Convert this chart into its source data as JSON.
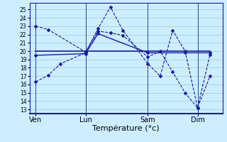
{
  "background_color": "#cceeff",
  "line_color": "#1a1aaa",
  "grid_color": "#99cccc",
  "xlabel": "Température (°c)",
  "xlabel_fontsize": 8,
  "yticks": [
    13,
    14,
    15,
    16,
    17,
    18,
    19,
    20,
    21,
    22,
    23,
    24,
    25
  ],
  "ylim": [
    12.5,
    25.8
  ],
  "day_labels": [
    "Ven",
    "Lun",
    "Sam",
    "Dim"
  ],
  "day_positions": [
    0,
    4,
    9,
    13
  ],
  "vline_positions": [
    0,
    4,
    9,
    13
  ],
  "xlim": [
    -0.5,
    15.0
  ],
  "series1_x": [
    0,
    1,
    2,
    4,
    5,
    6,
    7,
    9,
    10,
    11,
    12,
    13,
    14
  ],
  "series1_y": [
    16.3,
    17.1,
    18.5,
    19.8,
    22.7,
    25.3,
    22.5,
    18.5,
    17.0,
    22.5,
    20.0,
    13.2,
    17.0
  ],
  "series2_x": [
    0,
    1,
    4,
    5,
    6,
    7,
    9,
    10,
    11,
    12,
    13,
    14
  ],
  "series2_y": [
    23.0,
    22.6,
    19.9,
    22.4,
    22.2,
    21.9,
    19.3,
    20.0,
    17.5,
    15.0,
    13.2,
    19.6
  ],
  "series3_x": [
    0,
    4,
    5,
    9,
    12,
    14
  ],
  "series3_y": [
    19.5,
    19.7,
    22.1,
    19.8,
    19.8,
    19.8
  ],
  "series4_x": [
    0,
    14
  ],
  "series4_y": [
    20.0,
    20.0
  ]
}
